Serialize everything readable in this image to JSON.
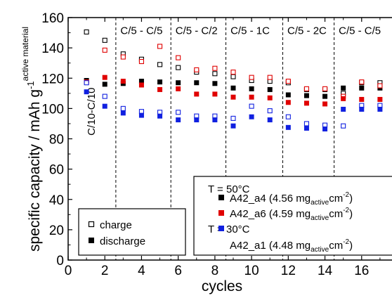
{
  "chart_data": {
    "type": "scatter",
    "xlabel": "cycles",
    "ylabel": "specific capacity / mAh g",
    "ylabel_sup": "-1",
    "ylabel_sub": "active material",
    "xlim": [
      0,
      18
    ],
    "ylim": [
      0,
      160
    ],
    "xticks": [
      0,
      2,
      4,
      6,
      8,
      10,
      12,
      14,
      16
    ],
    "yticks": [
      0,
      20,
      40,
      60,
      80,
      100,
      120,
      140,
      160
    ],
    "rate_boundaries": [
      2.6,
      5.6,
      8.6,
      11.7,
      14.5
    ],
    "rate_labels": [
      "C/10-C/10",
      "C/5 - C/5",
      "C/5 - C/2",
      "C/5 - 1C",
      "C/5 - 2C",
      "C/5 - C/5"
    ],
    "marker_legend": {
      "charge": "charge",
      "discharge": "discharge"
    },
    "temperature_labels": [
      "T = 50°C",
      "T = 30°C"
    ],
    "series": [
      {
        "name": "A42_a4",
        "legend_main": "A42_a4 (4.56 mg",
        "legend_sub1": "active",
        "legend_mid": "cm",
        "legend_sup": "-2",
        "legend_end": ")",
        "color": "#000000",
        "x": [
          1,
          2,
          3,
          4,
          5,
          6,
          7,
          8,
          9,
          10,
          11,
          12,
          13,
          14,
          15,
          16,
          17
        ],
        "charge": [
          150.5,
          145,
          136,
          132.5,
          129,
          127,
          124,
          123,
          121,
          118.5,
          118,
          117,
          112.5,
          112.5,
          110,
          117,
          117
        ],
        "discharge": [
          118.5,
          116,
          116.5,
          118,
          117.5,
          117,
          117,
          116.5,
          113.5,
          113,
          112.5,
          109,
          108.5,
          108,
          113.5,
          113.5,
          113.5
        ]
      },
      {
        "name": "A42_a6",
        "legend_main": "A42_a6 (4.59 mg",
        "legend_sub1": "active",
        "legend_mid": "cm",
        "legend_sup": "-2",
        "legend_end": ")",
        "color": "#e00000",
        "x": [
          1,
          2,
          3,
          4,
          5,
          6,
          7,
          8,
          9,
          10,
          11,
          12,
          13,
          14,
          15,
          16,
          17
        ],
        "charge": [
          117.5,
          138.5,
          134,
          131,
          141,
          133.5,
          125.5,
          126.5,
          124,
          120.5,
          120.5,
          118,
          113,
          113,
          108,
          117.5,
          115
        ],
        "discharge": [
          117.5,
          120.5,
          118,
          115.5,
          112.5,
          113,
          109.5,
          109.5,
          107.5,
          107.5,
          107,
          104,
          103.5,
          103,
          106.5,
          106,
          106
        ]
      },
      {
        "name": "A42_a1",
        "legend_main": "A42_a1 (4.48 mg",
        "legend_sub1": "active",
        "legend_mid": "cm",
        "legend_sup": "-2",
        "legend_end": ")",
        "color": "#1020e0",
        "x": [
          1,
          2,
          3,
          4,
          5,
          6,
          7,
          8,
          9,
          10,
          11,
          12,
          13,
          14,
          15,
          16,
          17
        ],
        "charge": [
          117,
          108,
          100,
          98,
          97.5,
          97.5,
          95,
          95,
          93.5,
          101.5,
          98.5,
          94.5,
          90,
          89,
          88.5,
          102,
          102
        ],
        "discharge": [
          111,
          101.5,
          97,
          95.5,
          95,
          92.5,
          92.5,
          92.5,
          88.5,
          94.5,
          92.5,
          87.5,
          87,
          86.5,
          99.5,
          99.5,
          99.5
        ]
      }
    ]
  }
}
